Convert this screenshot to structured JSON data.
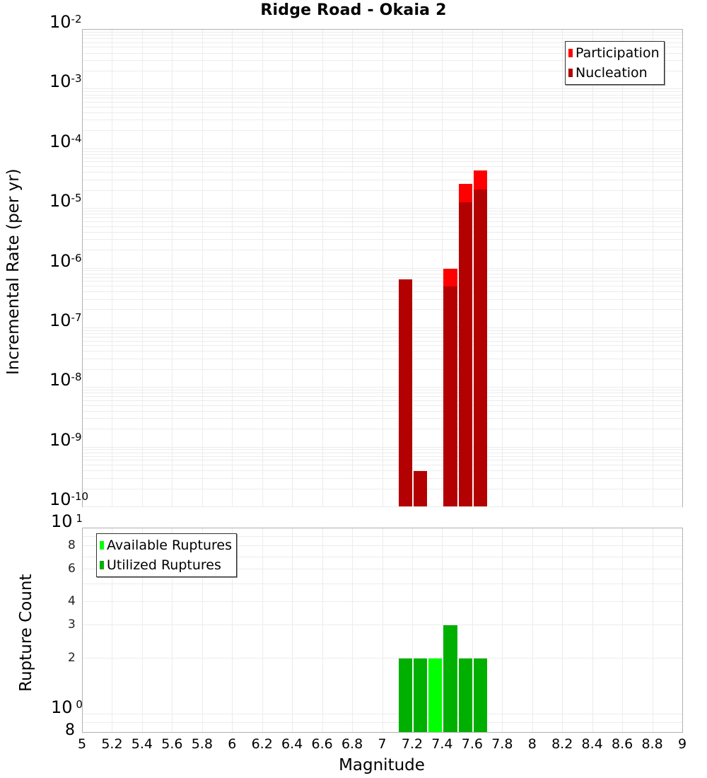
{
  "chart_data": [
    {
      "type": "bar",
      "title": "Ridge Road - Okaia 2",
      "xlabel": "Magnitude",
      "ylabel": "Incremental Rate (per yr)",
      "yscale": "log",
      "ylim": [
        1e-10,
        0.01
      ],
      "xlim": [
        5,
        9
      ],
      "grid": true,
      "legend_position": "upper right",
      "bar_width": 0.1,
      "x": [
        7.15,
        7.25,
        7.45,
        7.55,
        7.65
      ],
      "series": [
        {
          "name": "Participation",
          "color": "#ff0000",
          "values": [
            6.5e-07,
            4e-10,
            1e-06,
            2.6e-05,
            4.4e-05
          ]
        },
        {
          "name": "Nucleation",
          "color": "#b30000",
          "values": [
            6.5e-07,
            4e-10,
            5e-07,
            1.3e-05,
            2.1e-05
          ]
        }
      ]
    },
    {
      "type": "bar",
      "title": "",
      "xlabel": "Magnitude",
      "ylabel": "Rupture Count",
      "yscale": "log",
      "ylim": [
        0.8,
        10
      ],
      "xlim": [
        5,
        9
      ],
      "grid": true,
      "legend_position": "upper left",
      "bar_width": 0.1,
      "x": [
        7.15,
        7.25,
        7.35,
        7.45,
        7.55,
        7.65
      ],
      "series": [
        {
          "name": "Available Ruptures",
          "color": "#00ff00",
          "values": [
            2,
            2,
            2,
            3,
            2,
            2
          ]
        },
        {
          "name": "Utilized Ruptures",
          "color": "#00b000",
          "values": [
            2,
            2,
            0,
            3,
            2,
            2
          ]
        }
      ]
    }
  ],
  "labels": {
    "title": "Ridge Road - Okaia 2",
    "top_ylabel": "Incremental Rate (per yr)",
    "bottom_ylabel": "Rupture Count",
    "xlabel": "Magnitude",
    "legend_top": [
      "Participation",
      "Nucleation"
    ],
    "legend_bottom": [
      "Available Ruptures",
      "Utilized Ruptures"
    ],
    "top_yticks": [
      "-2",
      "-3",
      "-4",
      "-5",
      "-6",
      "-7",
      "-8",
      "-9",
      "-10"
    ],
    "bottom_yticks_major": [
      "1",
      "0"
    ],
    "bottom_yticks_minor": [
      "8",
      "6",
      "4",
      "3",
      "2"
    ],
    "bottom_ytick_low": "8",
    "xticks": [
      "5",
      "5.2",
      "5.4",
      "5.6",
      "5.8",
      "6",
      "6.2",
      "6.4",
      "6.6",
      "6.8",
      "7",
      "7.2",
      "7.4",
      "7.6",
      "7.8",
      "8",
      "8.2",
      "8.4",
      "8.6",
      "8.8",
      "9"
    ]
  },
  "colors": {
    "participation": "#ff0000",
    "nucleation": "#b30000",
    "available": "#00ff00",
    "utilized": "#00b000",
    "grid": "#ececec"
  }
}
